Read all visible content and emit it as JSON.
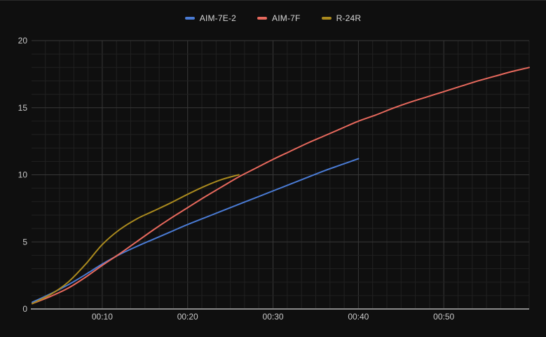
{
  "window": {
    "background": "#0f0f0f",
    "border_color": "#2a2a2a"
  },
  "legend": {
    "items": [
      {
        "label": "AIM-7E-2",
        "color": "#4a7bd4"
      },
      {
        "label": "AIM-7F",
        "color": "#e7695d"
      },
      {
        "label": "R-24R",
        "color": "#aa8a1e"
      }
    ]
  },
  "chart_data": {
    "type": "line",
    "title": "",
    "xlabel": "",
    "ylabel": "",
    "x_range": [
      1.8,
      60
    ],
    "y_range": [
      0,
      20
    ],
    "x_tick_values": [
      10,
      20,
      30,
      40,
      50
    ],
    "x_tick_labels": [
      "00:10",
      "00:20",
      "00:30",
      "00:40",
      "00:50"
    ],
    "y_tick_values": [
      0,
      5,
      10,
      15,
      20
    ],
    "y_tick_labels": [
      "0",
      "5",
      "10",
      "15",
      "20"
    ],
    "grid": {
      "minor_color": "#212121",
      "major_color": "#383838",
      "axis_color": "#8a8a8a",
      "text_color": "#c8c8c8",
      "x_minor_step": 1.6667,
      "y_minor_step": 1
    },
    "series": [
      {
        "name": "AIM-7E-2",
        "color": "#4a7bd4",
        "points": [
          [
            1.8,
            0.5
          ],
          [
            4,
            1.15
          ],
          [
            6,
            1.8
          ],
          [
            8,
            2.55
          ],
          [
            10,
            3.35
          ],
          [
            12,
            4.05
          ],
          [
            14,
            4.65
          ],
          [
            16,
            5.2
          ],
          [
            18,
            5.75
          ],
          [
            20,
            6.3
          ],
          [
            22,
            6.8
          ],
          [
            24,
            7.3
          ],
          [
            26,
            7.8
          ],
          [
            28,
            8.3
          ],
          [
            30,
            8.8
          ],
          [
            32,
            9.3
          ],
          [
            34,
            9.8
          ],
          [
            36,
            10.3
          ],
          [
            38,
            10.75
          ],
          [
            40,
            11.2
          ]
        ]
      },
      {
        "name": "AIM-7F",
        "color": "#e7695d",
        "points": [
          [
            1.8,
            0.4
          ],
          [
            4,
            0.95
          ],
          [
            6,
            1.55
          ],
          [
            8,
            2.35
          ],
          [
            10,
            3.25
          ],
          [
            12,
            4.1
          ],
          [
            14,
            5.0
          ],
          [
            16,
            5.9
          ],
          [
            18,
            6.75
          ],
          [
            20,
            7.55
          ],
          [
            22,
            8.35
          ],
          [
            24,
            9.1
          ],
          [
            26,
            9.85
          ],
          [
            28,
            10.5
          ],
          [
            30,
            11.15
          ],
          [
            32,
            11.75
          ],
          [
            34,
            12.35
          ],
          [
            36,
            12.9
          ],
          [
            38,
            13.45
          ],
          [
            40,
            14.0
          ],
          [
            42,
            14.45
          ],
          [
            44,
            14.95
          ],
          [
            46,
            15.4
          ],
          [
            48,
            15.8
          ],
          [
            50,
            16.2
          ],
          [
            52,
            16.6
          ],
          [
            54,
            17.0
          ],
          [
            56,
            17.35
          ],
          [
            58,
            17.7
          ],
          [
            60,
            18.0
          ]
        ]
      },
      {
        "name": "R-24R",
        "color": "#aa8a1e",
        "points": [
          [
            1.8,
            0.4
          ],
          [
            4,
            1.1
          ],
          [
            6,
            2.0
          ],
          [
            8,
            3.3
          ],
          [
            10,
            4.8
          ],
          [
            12,
            5.9
          ],
          [
            14,
            6.7
          ],
          [
            16,
            7.3
          ],
          [
            18,
            7.9
          ],
          [
            20,
            8.55
          ],
          [
            22,
            9.15
          ],
          [
            24,
            9.65
          ],
          [
            26,
            10.0
          ]
        ]
      }
    ]
  }
}
